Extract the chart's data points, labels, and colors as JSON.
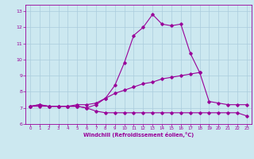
{
  "title": "",
  "xlabel": "Windchill (Refroidissement éolien,°C)",
  "ylabel": "",
  "background_color": "#cce8f0",
  "line_color": "#990099",
  "grid_color": "#aaccdd",
  "hours": [
    0,
    1,
    2,
    3,
    4,
    5,
    6,
    7,
    8,
    9,
    10,
    11,
    12,
    13,
    14,
    15,
    16,
    17,
    18,
    19,
    20,
    21,
    22,
    23
  ],
  "series1": [
    7.1,
    7.2,
    7.1,
    7.1,
    7.1,
    7.1,
    7.0,
    7.2,
    7.6,
    8.4,
    9.8,
    11.5,
    12.0,
    12.8,
    12.2,
    12.1,
    12.2,
    10.4,
    9.2,
    null,
    null,
    null,
    null,
    null
  ],
  "series2": [
    7.1,
    7.1,
    7.1,
    7.1,
    7.1,
    7.1,
    7.0,
    6.8,
    6.7,
    6.7,
    6.7,
    6.7,
    6.7,
    6.7,
    6.7,
    6.7,
    6.7,
    6.7,
    6.7,
    6.7,
    6.7,
    6.7,
    6.7,
    6.5
  ],
  "series3": [
    7.1,
    7.2,
    7.1,
    7.1,
    7.1,
    7.2,
    7.2,
    7.3,
    7.6,
    7.9,
    8.1,
    8.3,
    8.5,
    8.6,
    8.8,
    8.9,
    9.0,
    9.1,
    9.2,
    7.4,
    7.3,
    7.2,
    7.2,
    7.2
  ],
  "xlim": [
    -0.5,
    23.5
  ],
  "ylim": [
    6.0,
    13.4
  ],
  "yticks": [
    6,
    7,
    8,
    9,
    10,
    11,
    12,
    13
  ],
  "xticks": [
    0,
    1,
    2,
    3,
    4,
    5,
    6,
    7,
    8,
    9,
    10,
    11,
    12,
    13,
    14,
    15,
    16,
    17,
    18,
    19,
    20,
    21,
    22,
    23
  ]
}
